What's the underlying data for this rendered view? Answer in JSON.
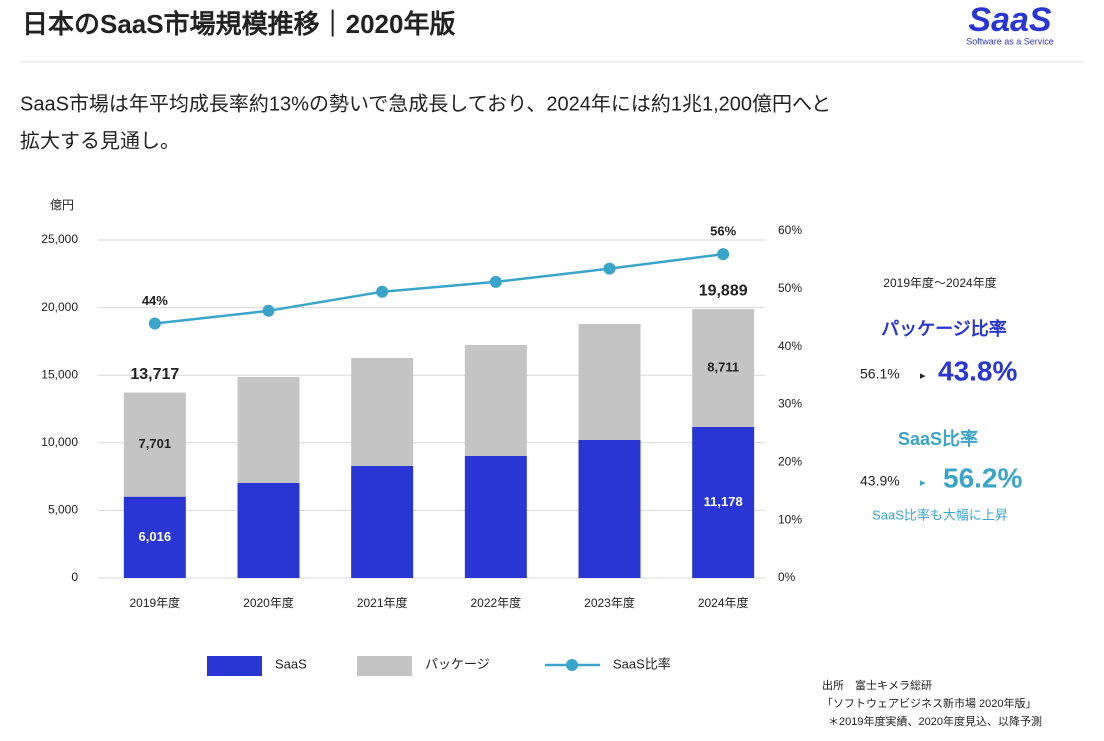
{
  "header": {
    "title": "日本のSaaS市場規模推移｜2020年版",
    "logo": "SaaS",
    "logo_sub": "Software as a Service"
  },
  "subtitle_lines": [
    "SaaS市場は年平均成長率約13%の勢いで急成長しており、2024年には約1兆1,200億円へと",
    "拡大する見通し。"
  ],
  "chart_data": {
    "type": "bar",
    "stacked": true,
    "y_label": "億円",
    "categories": [
      "2019年度",
      "2020年度",
      "2021年度",
      "2022年度",
      "2023年度",
      "2024年度"
    ],
    "series": [
      {
        "name": "SaaS",
        "color": "#2a36d4",
        "values": [
          6016,
          7027,
          8284,
          9024,
          10207,
          11178
        ],
        "value_labels": [
          "6,016",
          null,
          null,
          null,
          null,
          "11,178"
        ]
      },
      {
        "name": "パッケージ",
        "color": "#c4c4c4",
        "values": [
          7701,
          7840,
          7988,
          8210,
          8580,
          8711
        ],
        "value_labels": [
          "7,701",
          null,
          null,
          null,
          null,
          "8,711"
        ]
      },
      {
        "name": "SaaS比率",
        "type": "line",
        "axis": "y2",
        "color": "#3aa5c9",
        "values": [
          44,
          46.2,
          49.5,
          51.2,
          53.5,
          56
        ],
        "value_labels": [
          "44%",
          null,
          null,
          null,
          null,
          "56%"
        ]
      }
    ],
    "totals": [
      13717,
      null,
      null,
      null,
      null,
      19889
    ],
    "total_labels": [
      "13,717",
      null,
      null,
      null,
      null,
      "19,889"
    ],
    "ylim": [
      0,
      25000
    ],
    "yticks": [
      0,
      {
        "value": 5000,
        "label": "5,000"
      },
      {
        "value": 10000,
        "label": "10,000"
      },
      {
        "value": 15000,
        "label": "15,000"
      },
      {
        "value": 20000,
        "label": "20,000"
      },
      {
        "value": 25000,
        "label": "25,000"
      }
    ],
    "y2lim": [
      0,
      60
    ],
    "y2ticks": [
      {
        "value": 0,
        "label": "0%"
      },
      {
        "value": 10,
        "label": "10%"
      },
      {
        "value": 20,
        "label": "20%"
      },
      {
        "value": 30,
        "label": "30%"
      },
      {
        "value": 40,
        "label": "40%"
      },
      {
        "value": 50,
        "label": "50%"
      },
      {
        "value": 60,
        "label": "60%"
      }
    ],
    "grid": true
  },
  "side_panel": {
    "period": "2019年度〜2024年度",
    "items": [
      {
        "title": "パッケージ比率",
        "from": "56.1%",
        "to": "43.8%"
      },
      {
        "title": "SaaS比率",
        "from": "43.9%",
        "to": "56.2%"
      }
    ],
    "note": "SaaS比率も大幅に上昇"
  },
  "source": {
    "lines": [
      "出所　富士キメラ総研",
      "「ソフトウェアビジネス新市場 2020年版」",
      "＊2019年度実績、2020年度見込、以降予測"
    ]
  }
}
